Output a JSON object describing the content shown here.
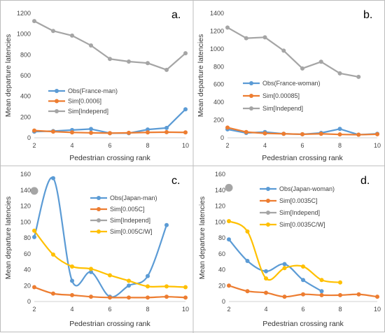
{
  "chart_data": [
    {
      "type": "line",
      "panel_label": "a.",
      "xlabel": "Pedestrian crossing rank",
      "ylabel": "Mean departure latencies",
      "xlim": [
        2,
        10
      ],
      "ylim": [
        0,
        1200
      ],
      "xticks": [
        2,
        4,
        6,
        8,
        10
      ],
      "yticks": [
        0,
        200,
        400,
        600,
        800,
        1000,
        1200
      ],
      "grid": false,
      "legend_position": "left-middle",
      "series": [
        {
          "name": "Obs(France-man)",
          "color": "#5b9bd5",
          "x": [
            2,
            3,
            4,
            5,
            6,
            7,
            8,
            9,
            10
          ],
          "y": [
            60,
            65,
            75,
            85,
            45,
            45,
            80,
            95,
            275
          ],
          "marker": true
        },
        {
          "name": "Sim[0.0006]",
          "color": "#ed7d31",
          "x": [
            2,
            3,
            4,
            5,
            6,
            7,
            8,
            9,
            10
          ],
          "y": [
            70,
            60,
            52,
            48,
            45,
            48,
            52,
            55,
            52
          ],
          "marker": true
        },
        {
          "name": "Sim[Independ]",
          "color": "#a5a5a5",
          "x": [
            2,
            3,
            4,
            5,
            6,
            7,
            8,
            9,
            10
          ],
          "y": [
            1125,
            1030,
            985,
            890,
            760,
            735,
            720,
            655,
            815
          ],
          "marker": true
        }
      ]
    },
    {
      "type": "line",
      "panel_label": "b.",
      "xlabel": "Pedestrian crossing rank",
      "ylabel": "Mean departure latencies",
      "xlim": [
        2,
        10
      ],
      "ylim": [
        0,
        1400
      ],
      "xticks": [
        2,
        4,
        6,
        8,
        10
      ],
      "yticks": [
        0,
        200,
        400,
        600,
        800,
        1000,
        1200,
        1400
      ],
      "grid": false,
      "legend_position": "left-middle",
      "series": [
        {
          "name": "Obs(France-woman)",
          "color": "#5b9bd5",
          "x": [
            2,
            3,
            4,
            5,
            6,
            7,
            8,
            9,
            10
          ],
          "y": [
            95,
            55,
            65,
            45,
            40,
            55,
            100,
            35,
            45
          ],
          "marker": true
        },
        {
          "name": "Sim[0.00085]",
          "color": "#ed7d31",
          "x": [
            2,
            3,
            4,
            5,
            6,
            7,
            8,
            9,
            10
          ],
          "y": [
            115,
            65,
            50,
            45,
            40,
            45,
            38,
            35,
            40
          ],
          "marker": true
        },
        {
          "name": "Sim[Independ]",
          "color": "#a5a5a5",
          "x": [
            2,
            3,
            4,
            5,
            6,
            7,
            8,
            9
          ],
          "y": [
            1240,
            1120,
            1130,
            980,
            780,
            855,
            725,
            685
          ],
          "marker": true
        }
      ]
    },
    {
      "type": "line",
      "panel_label": "c.",
      "xlabel": "Pedestrian crossing rank",
      "ylabel": "Mean departure latencies",
      "xlim": [
        2,
        10
      ],
      "ylim": [
        0,
        160
      ],
      "xticks": [
        2,
        4,
        6,
        8,
        10
      ],
      "yticks": [
        0,
        20,
        40,
        60,
        80,
        100,
        120,
        140,
        160
      ],
      "grid": false,
      "legend_position": "top-right",
      "series": [
        {
          "name": "Obs(Japan-man)",
          "color": "#5b9bd5",
          "x": [
            2,
            3,
            4,
            5,
            6,
            7,
            8,
            9
          ],
          "y": [
            81,
            155,
            26,
            37,
            6,
            20,
            32,
            96
          ],
          "marker": true,
          "smooth": true
        },
        {
          "name": "Sim[0.005C]",
          "color": "#ed7d31",
          "x": [
            2,
            3,
            4,
            5,
            6,
            7,
            8,
            9,
            10
          ],
          "y": [
            18,
            10,
            8,
            6,
            5,
            5,
            5,
            6,
            5
          ],
          "marker": true,
          "smooth": true
        },
        {
          "name": "Sim[Independ]",
          "color": "#a5a5a5",
          "x": [
            2
          ],
          "y": [
            139
          ],
          "marker": true
        },
        {
          "name": "Sim[0.005C/W]",
          "color": "#ffc000",
          "x": [
            2,
            3,
            4,
            5,
            6,
            7,
            8,
            9,
            10
          ],
          "y": [
            89,
            59,
            44,
            41,
            33,
            26,
            19,
            19,
            18
          ],
          "marker": true,
          "smooth": true
        }
      ]
    },
    {
      "type": "line",
      "panel_label": "d.",
      "xlabel": "Pedestrian crossing rank",
      "ylabel": "Mean departure latencies",
      "xlim": [
        2,
        10
      ],
      "ylim": [
        0,
        160
      ],
      "xticks": [
        2,
        4,
        6,
        8,
        10
      ],
      "yticks": [
        0,
        20,
        40,
        60,
        80,
        100,
        120,
        140,
        160
      ],
      "grid": false,
      "legend_position": "top-center",
      "series": [
        {
          "name": "Obs(Japan-woman)",
          "color": "#5b9bd5",
          "x": [
            2,
            3,
            4,
            5,
            6,
            7
          ],
          "y": [
            78,
            51,
            38,
            47,
            27,
            13
          ],
          "marker": true,
          "smooth": true
        },
        {
          "name": "Sim[0.0035C]",
          "color": "#ed7d31",
          "x": [
            2,
            3,
            4,
            5,
            6,
            7,
            8,
            9,
            10
          ],
          "y": [
            20,
            13,
            11,
            6,
            9,
            8,
            8,
            9,
            6
          ],
          "marker": true,
          "smooth": true
        },
        {
          "name": "Sim[Independ]",
          "color": "#a5a5a5",
          "x": [
            2
          ],
          "y": [
            143
          ],
          "marker": true
        },
        {
          "name": "Sim[0.0035C/W]",
          "color": "#ffc000",
          "x": [
            2,
            3,
            4,
            5,
            6,
            7,
            8
          ],
          "y": [
            101,
            88,
            29,
            42,
            44,
            27,
            24
          ],
          "marker": true,
          "smooth": true
        }
      ]
    }
  ]
}
